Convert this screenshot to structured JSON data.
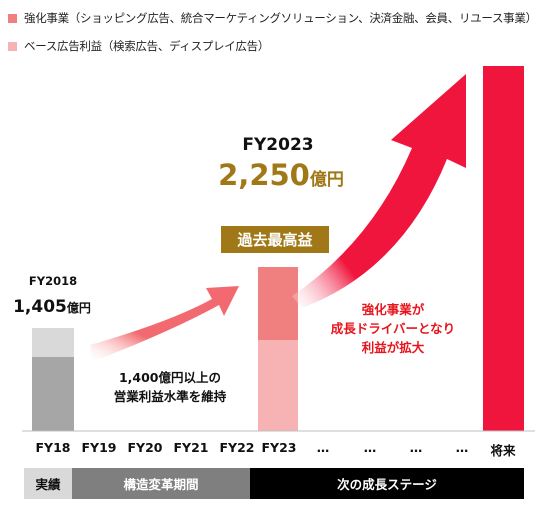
{
  "chart_data": {
    "type": "bar",
    "categories": [
      "FY18",
      "FY19",
      "FY20",
      "FY21",
      "FY22",
      "FY23",
      "…",
      "…",
      "…",
      "…",
      "将来"
    ],
    "series": [
      {
        "name": "強化事業（ショッピング広告、統合マーケティングソリューション、決済金融、会員、リユース事業）",
        "color": "#f08080"
      },
      {
        "name": "ベース広告利益（検索広告、ディスプレイ広告）",
        "color": "#f7b3b3"
      }
    ],
    "totals": {
      "FY18": 1405,
      "FY23": 2250
    },
    "unit": "億円"
  },
  "legend": [
    {
      "label": "強化事業（ショッピング広告、統合マーケティングソリューション、決済金融、会員、リユース事業）",
      "color": "#f08080"
    },
    {
      "label": "ベース広告利益（検索広告、ディスプレイ広告）",
      "color": "#f7b3b3"
    }
  ],
  "fy2018": {
    "title": "FY2018",
    "value": "1,405",
    "unit": "億円"
  },
  "fy2023": {
    "title": "FY2023",
    "value": "2,250",
    "unit": "億円",
    "badge": "過去最高益"
  },
  "notes": {
    "maintain": [
      "1,400億円以上の",
      "営業利益水準を維持"
    ],
    "growth": [
      "強化事業が",
      "成長ドライバーとなり",
      "利益が拡大"
    ]
  },
  "periods": [
    {
      "label": "実績",
      "bg": "#d9d9d9",
      "fg": "#111111"
    },
    {
      "label": "構造変革期間",
      "bg": "#7f7f7f",
      "fg": "#ffffff"
    },
    {
      "label": "次の成長ステージ",
      "bg": "#000000",
      "fg": "#ffffff"
    }
  ],
  "colors": {
    "fy18_top": "#d9d9d9",
    "fy18_bottom": "#a6a6a6",
    "fy23_top": "#f08080",
    "fy23_bottom": "#f7b3b3",
    "future": "#f0153c",
    "gold": "#a07818",
    "arrow_small": "#f26a6f",
    "arrow_big": "#f0153c",
    "growth_text": "#e8141c"
  }
}
